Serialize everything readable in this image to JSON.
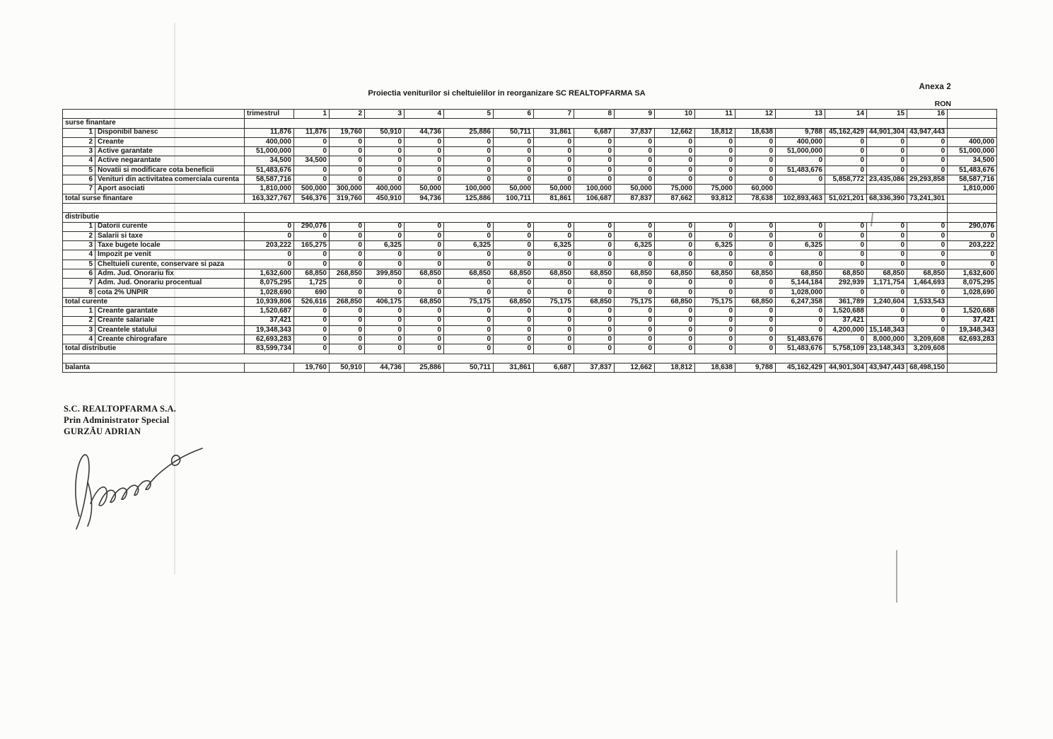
{
  "page": {
    "annex": "Anexa 2",
    "title": "Proiectia veniturilor si cheltuielilor in reorganizare SC REALTOPFARMA SA",
    "currency": "RON"
  },
  "colors": {
    "paper": "#fcfcfa",
    "ink": "#2d2d2d"
  },
  "table": {
    "header": {
      "corner": "",
      "period_label": "trimestrul",
      "quarters": [
        "1",
        "2",
        "3",
        "4",
        "5",
        "6",
        "7",
        "8",
        "9",
        "10",
        "11",
        "12",
        "13",
        "14",
        "15",
        "16"
      ]
    },
    "sections": [
      {
        "type": "section",
        "label": "surse finantare",
        "margin": ""
      },
      {
        "type": "row",
        "num": "1",
        "label": "Disponibil banesc",
        "t": "11,876",
        "q": [
          "11,876",
          "19,760",
          "50,910",
          "44,736",
          "25,886",
          "50,711",
          "31,861",
          "6,687",
          "37,837",
          "12,662",
          "18,812",
          "18,638",
          "9,788",
          "45,162,429",
          "44,901,304",
          "43,947,443"
        ],
        "margin": ""
      },
      {
        "type": "row",
        "num": "2",
        "label": "Creante",
        "t": "400,000",
        "q": [
          "0",
          "0",
          "0",
          "0",
          "0",
          "0",
          "0",
          "0",
          "0",
          "0",
          "0",
          "0",
          "400,000",
          "0",
          "0",
          "0"
        ],
        "margin": "400,000"
      },
      {
        "type": "row",
        "num": "3",
        "label": "Active garantate",
        "t": "51,000,000",
        "q": [
          "0",
          "0",
          "0",
          "0",
          "0",
          "0",
          "0",
          "0",
          "0",
          "0",
          "0",
          "0",
          "51,000,000",
          "0",
          "0",
          "0"
        ],
        "margin": "51,000,000"
      },
      {
        "type": "row",
        "num": "4",
        "label": "Active negarantate",
        "t": "34,500",
        "q": [
          "34,500",
          "0",
          "0",
          "0",
          "0",
          "0",
          "0",
          "0",
          "0",
          "0",
          "0",
          "0",
          "0",
          "0",
          "0",
          "0"
        ],
        "margin": "34,500"
      },
      {
        "type": "row",
        "num": "5",
        "label": "Novatii si modificare cota beneficii",
        "t": "51,483,676",
        "q": [
          "0",
          "0",
          "0",
          "0",
          "0",
          "0",
          "0",
          "0",
          "0",
          "0",
          "0",
          "0",
          "51,483,676",
          "0",
          "0",
          "0"
        ],
        "margin": "51,483,676"
      },
      {
        "type": "row",
        "num": "6",
        "label": "Venituri din activitatea comerciala curenta",
        "t": "58,587,716",
        "q": [
          "0",
          "0",
          "0",
          "0",
          "0",
          "0",
          "0",
          "0",
          "0",
          "0",
          "0",
          "0",
          "0",
          "5,858,772",
          "23,435,086",
          "29,293,858"
        ],
        "margin": "58,587,716"
      },
      {
        "type": "row",
        "num": "7",
        "label": "Aport asociati",
        "t": "1,810,000",
        "q": [
          "500,000",
          "300,000",
          "400,000",
          "50,000",
          "100,000",
          "50,000",
          "50,000",
          "100,000",
          "50,000",
          "75,000",
          "75,000",
          "60,000",
          "",
          "",
          "",
          ""
        ],
        "margin": "1,810,000"
      },
      {
        "type": "total",
        "label": "total surse finantare",
        "t": "163,327,767",
        "q": [
          "546,376",
          "319,760",
          "450,910",
          "94,736",
          "125,886",
          "100,711",
          "81,861",
          "106,687",
          "87,837",
          "87,662",
          "93,812",
          "78,638",
          "102,893,463",
          "51,021,201",
          "68,336,390",
          "73,241,301"
        ],
        "margin": ""
      },
      {
        "type": "spacer",
        "margin": ""
      },
      {
        "type": "section",
        "label": "distributie",
        "margin": ""
      },
      {
        "type": "row",
        "num": "1",
        "label": "Datorii curente",
        "t": "0",
        "q": [
          "290,076",
          "0",
          "0",
          "0",
          "0",
          "0",
          "0",
          "0",
          "0",
          "0",
          "0",
          "0",
          "0",
          "0",
          "0",
          "0"
        ],
        "margin": "290,076"
      },
      {
        "type": "row",
        "num": "2",
        "label": "Salarii si taxe",
        "t": "0",
        "q": [
          "0",
          "0",
          "0",
          "0",
          "0",
          "0",
          "0",
          "0",
          "0",
          "0",
          "0",
          "0",
          "0",
          "0",
          "0",
          "0"
        ],
        "margin": "0"
      },
      {
        "type": "row",
        "num": "3",
        "label": "Taxe bugete locale",
        "t": "203,222",
        "q": [
          "165,275",
          "0",
          "6,325",
          "0",
          "6,325",
          "0",
          "6,325",
          "0",
          "6,325",
          "0",
          "6,325",
          "0",
          "6,325",
          "0",
          "0",
          "0"
        ],
        "margin": "203,222"
      },
      {
        "type": "row",
        "num": "4",
        "label": "Impozit pe venit",
        "t": "0",
        "q": [
          "0",
          "0",
          "0",
          "0",
          "0",
          "0",
          "0",
          "0",
          "0",
          "0",
          "0",
          "0",
          "0",
          "0",
          "0",
          "0"
        ],
        "margin": "0"
      },
      {
        "type": "row",
        "num": "5",
        "label": "Cheltuieli curente, conservare si paza",
        "t": "0",
        "q": [
          "0",
          "0",
          "0",
          "0",
          "0",
          "0",
          "0",
          "0",
          "0",
          "0",
          "0",
          "0",
          "0",
          "0",
          "0",
          "0"
        ],
        "margin": "0"
      },
      {
        "type": "row",
        "num": "6",
        "label": "Adm. Jud.  Onorariu fix",
        "t": "1,632,600",
        "q": [
          "68,850",
          "268,850",
          "399,850",
          "68,850",
          "68,850",
          "68,850",
          "68,850",
          "68,850",
          "68,850",
          "68,850",
          "68,850",
          "68,850",
          "68,850",
          "68,850",
          "68,850",
          "68,850"
        ],
        "margin": "1,632,600"
      },
      {
        "type": "row",
        "num": "7",
        "label": "Adm. Jud.  Onorariu procentual",
        "t": "8,075,295",
        "q": [
          "1,725",
          "0",
          "0",
          "0",
          "0",
          "0",
          "0",
          "0",
          "0",
          "0",
          "0",
          "0",
          "5,144,184",
          "292,939",
          "1,171,754",
          "1,464,693"
        ],
        "margin": "8,075,295"
      },
      {
        "type": "row",
        "num": "8",
        "label": "cota 2% UNPIR",
        "t": "1,028,690",
        "q": [
          "690",
          "0",
          "0",
          "0",
          "0",
          "0",
          "0",
          "0",
          "0",
          "0",
          "0",
          "0",
          "1,028,000",
          "0",
          "0",
          "0"
        ],
        "margin": "1,028,690"
      },
      {
        "type": "total",
        "label": "total curente",
        "t": "10,939,806",
        "q": [
          "526,616",
          "268,850",
          "406,175",
          "68,850",
          "75,175",
          "68,850",
          "75,175",
          "68,850",
          "75,175",
          "68,850",
          "75,175",
          "68,850",
          "6,247,358",
          "361,789",
          "1,240,604",
          "1,533,543"
        ],
        "margin": ""
      },
      {
        "type": "row",
        "num": "1",
        "label": "Creante garantate",
        "t": "1,520,687",
        "q": [
          "0",
          "0",
          "0",
          "0",
          "0",
          "0",
          "0",
          "0",
          "0",
          "0",
          "0",
          "0",
          "0",
          "1,520,688",
          "0",
          "0"
        ],
        "margin": "1,520,688"
      },
      {
        "type": "row",
        "num": "2",
        "label": "Creante salariale",
        "t": "37,421",
        "q": [
          "0",
          "0",
          "0",
          "0",
          "0",
          "0",
          "0",
          "0",
          "0",
          "0",
          "0",
          "0",
          "0",
          "37,421",
          "0",
          "0"
        ],
        "margin": "37,421"
      },
      {
        "type": "row",
        "num": "3",
        "label": "Creantele statului",
        "t": "19,348,343",
        "q": [
          "0",
          "0",
          "0",
          "0",
          "0",
          "0",
          "0",
          "0",
          "0",
          "0",
          "0",
          "0",
          "0",
          "4,200,000",
          "15,148,343",
          "0"
        ],
        "margin": "19,348,343"
      },
      {
        "type": "row",
        "num": "4",
        "label": "Creante chirografare",
        "t": "62,693,283",
        "q": [
          "0",
          "0",
          "0",
          "0",
          "0",
          "0",
          "0",
          "0",
          "0",
          "0",
          "0",
          "0",
          "51,483,676",
          "0",
          "8,000,000",
          "3,209,608"
        ],
        "margin": "62,693,283"
      },
      {
        "type": "total",
        "label": "total distributie",
        "t": "83,599,734",
        "q": [
          "0",
          "0",
          "0",
          "0",
          "0",
          "0",
          "0",
          "0",
          "0",
          "0",
          "0",
          "0",
          "51,483,676",
          "5,758,109",
          "23,148,343",
          "3,209,608"
        ],
        "margin": ""
      },
      {
        "type": "spacer-sm",
        "margin": ""
      },
      {
        "type": "total",
        "label": "balanta",
        "t": "",
        "q": [
          "19,760",
          "50,910",
          "44,736",
          "25,886",
          "50,711",
          "31,861",
          "6,687",
          "37,837",
          "12,662",
          "18,812",
          "18,638",
          "9,788",
          "45,162,429",
          "44,901,304",
          "43,947,443",
          "68,498,150"
        ],
        "margin": ""
      }
    ]
  },
  "signature": {
    "company": "S.C. REALTOPFARMA S.A.",
    "role": "Prin Administrator Special",
    "name": "GURZĂU ADRIAN"
  }
}
